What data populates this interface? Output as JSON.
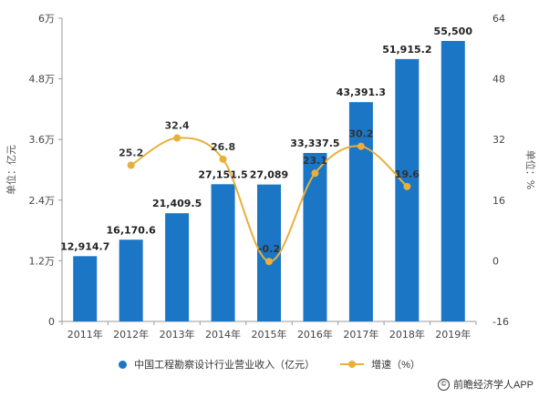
{
  "colors": {
    "bar": "#1b76c6",
    "line": "#e8b03a",
    "grid": "#e3e3e3",
    "axis": "#9a9a9a"
  },
  "legend": {
    "bar_label": "中国工程勘察设计行业营业收入（亿元）",
    "line_label": "增速（%）"
  },
  "source": {
    "icon": "copyright-icon",
    "text": "前瞻经济学人APP"
  },
  "chart_data": {
    "type": "bar",
    "categories": [
      "2011年",
      "2012年",
      "2013年",
      "2014年",
      "2015年",
      "2016年",
      "2017年",
      "2018年",
      "2019年"
    ],
    "series": [
      {
        "name": "中国工程勘察设计行业营业收入（亿元）",
        "type": "bar",
        "axis": "left",
        "values": [
          12914.7,
          16170.6,
          21409.5,
          27151.5,
          27089,
          33337.5,
          43391.3,
          51915.2,
          55500
        ],
        "labels": [
          "12,914.7",
          "16,170.6",
          "21,409.5",
          "27,151.5",
          "27,089",
          "33,337.5",
          "43,391.3",
          "51,915.2",
          "55,500"
        ]
      },
      {
        "name": "增速（%）",
        "type": "line",
        "axis": "right",
        "values": [
          null,
          25.2,
          32.4,
          26.8,
          -0.2,
          23.1,
          30.2,
          19.6,
          null
        ],
        "labels": [
          "",
          "25.2",
          "32.4",
          "26.8",
          "-0.2",
          "23.1",
          "30.2",
          "19.6",
          ""
        ]
      }
    ],
    "left_axis": {
      "title": "单位：亿元",
      "range": [
        0,
        60000
      ],
      "ticks": [
        0,
        12000,
        24000,
        36000,
        48000,
        60000
      ],
      "tick_labels": [
        "0",
        "1.2万",
        "2.4万",
        "3.6万",
        "4.8万",
        "6万"
      ]
    },
    "right_axis": {
      "title": "单位：%",
      "range": [
        -16,
        64
      ],
      "ticks": [
        -16,
        0,
        16,
        32,
        48,
        64
      ],
      "tick_labels": [
        "-16",
        "0",
        "16",
        "32",
        "48",
        "64"
      ]
    },
    "grid": false,
    "legend_position": "bottom"
  }
}
